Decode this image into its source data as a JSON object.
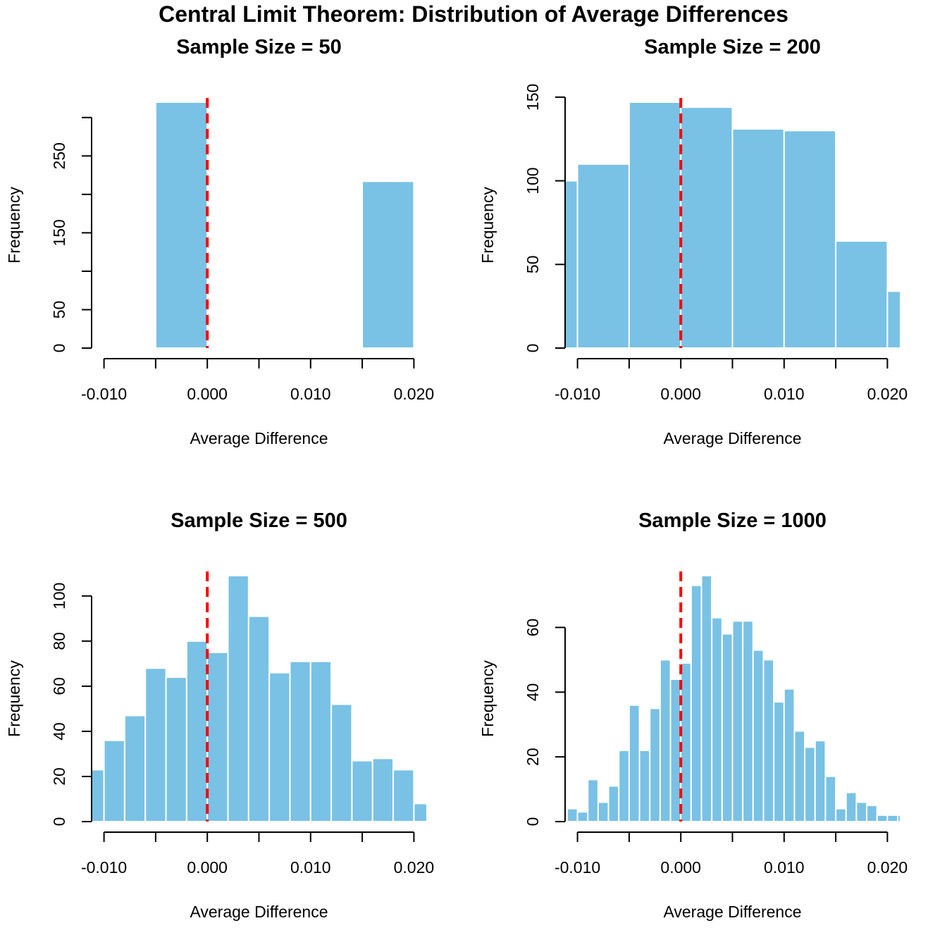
{
  "title": "Central Limit Theorem: Distribution of Average Differences",
  "chart_data": [
    {
      "type": "histogram",
      "title": "Sample Size = 50",
      "x_label": "Average Difference",
      "y_label": "Frequency",
      "bins": [
        -0.005,
        0,
        0.005,
        0.01,
        0.015,
        0.02
      ],
      "values": [
        320,
        0,
        0,
        0,
        217
      ],
      "color": "#79c2e5",
      "xlim": [
        -0.0112,
        0.0212
      ],
      "ylim": [
        -12.8,
        332.8
      ],
      "xticks": [
        {
          "value": -0.01,
          "label": "-0.010"
        },
        {
          "value": 0,
          "label": "0.000"
        },
        {
          "value": 0.01,
          "label": "0.010"
        },
        {
          "value": 0.02,
          "label": "0.020"
        }
      ],
      "xminorticks": [
        -0.005,
        0.005,
        0.015
      ],
      "yticks": [
        0,
        50,
        150,
        250
      ],
      "yminorticks": [
        100,
        200,
        300
      ],
      "vline": 0,
      "vline_color": "#ff0000"
    },
    {
      "type": "histogram",
      "title": "Sample Size = 200",
      "x_label": "Average Difference",
      "y_label": "Frequency",
      "bins": [
        -0.015,
        -0.01,
        -0.005,
        0,
        0.005,
        0.01,
        0.015,
        0.02,
        0.025
      ],
      "values": [
        100,
        110,
        147,
        144,
        131,
        130,
        64,
        34
      ],
      "color": "#79c2e5",
      "xlim": [
        -0.0112,
        0.0212
      ],
      "ylim": [
        -5.9,
        152.9
      ],
      "xticks": [
        {
          "value": -0.01,
          "label": "-0.010"
        },
        {
          "value": 0,
          "label": "0.000"
        },
        {
          "value": 0.01,
          "label": "0.010"
        },
        {
          "value": 0.02,
          "label": "0.020"
        }
      ],
      "xminorticks": [
        -0.005,
        0.005,
        0.015
      ],
      "yticks": [
        0,
        50,
        100,
        150
      ],
      "vline": 0,
      "vline_color": "#ff0000"
    },
    {
      "type": "histogram",
      "title": "Sample Size = 500",
      "x_label": "Average Difference",
      "y_label": "Frequency",
      "bins": [
        -0.012,
        -0.01,
        -0.008,
        -0.006,
        -0.004,
        -0.002,
        0,
        0.002,
        0.004,
        0.006,
        0.008,
        0.01,
        0.012,
        0.014,
        0.016,
        0.018,
        0.02,
        0.022
      ],
      "values": [
        23,
        36,
        47,
        68,
        64,
        80,
        75,
        109,
        91,
        66,
        71,
        71,
        52,
        27,
        28,
        23,
        8
      ],
      "color": "#79c2e5",
      "xlim": [
        -0.0112,
        0.0212
      ],
      "ylim": [
        -4.36,
        113.36
      ],
      "xticks": [
        {
          "value": -0.01,
          "label": "-0.010"
        },
        {
          "value": 0,
          "label": "0.000"
        },
        {
          "value": 0.01,
          "label": "0.010"
        },
        {
          "value": 0.02,
          "label": "0.020"
        }
      ],
      "xminorticks": [
        -0.005,
        0.005,
        0.015
      ],
      "yticks": [
        0,
        20,
        40,
        60,
        80,
        100
      ],
      "vline": 0,
      "vline_color": "#ff0000"
    },
    {
      "type": "histogram",
      "title": "Sample Size = 1000",
      "x_label": "Average Difference",
      "y_label": "Frequency",
      "bins": [
        -0.011,
        -0.01,
        -0.009,
        -0.008,
        -0.007,
        -0.006,
        -0.005,
        -0.004,
        -0.003,
        -0.002,
        -0.001,
        0,
        0.001,
        0.002,
        0.003,
        0.004,
        0.005,
        0.006,
        0.007,
        0.008,
        0.009,
        0.01,
        0.011,
        0.012,
        0.013,
        0.014,
        0.015,
        0.016,
        0.017,
        0.018,
        0.019,
        0.02,
        0.021,
        0.022
      ],
      "values": [
        4,
        3,
        13,
        6,
        11,
        22,
        36,
        22,
        35,
        50,
        44,
        49,
        73,
        76,
        63,
        58,
        62,
        62,
        53,
        50,
        37,
        41,
        28,
        23,
        25,
        14,
        4,
        9,
        6,
        5,
        2,
        2,
        2
      ],
      "color": "#79c2e5",
      "xlim": [
        -0.0112,
        0.0212
      ],
      "ylim": [
        -3.04,
        79.04
      ],
      "xticks": [
        {
          "value": -0.01,
          "label": "-0.010"
        },
        {
          "value": 0,
          "label": "0.000"
        },
        {
          "value": 0.01,
          "label": "0.010"
        },
        {
          "value": 0.02,
          "label": "0.020"
        }
      ],
      "xminorticks": [
        -0.005,
        0.005,
        0.015
      ],
      "yticks": [
        0,
        20,
        40,
        60
      ],
      "vline": 0,
      "vline_color": "#ff0000"
    }
  ]
}
